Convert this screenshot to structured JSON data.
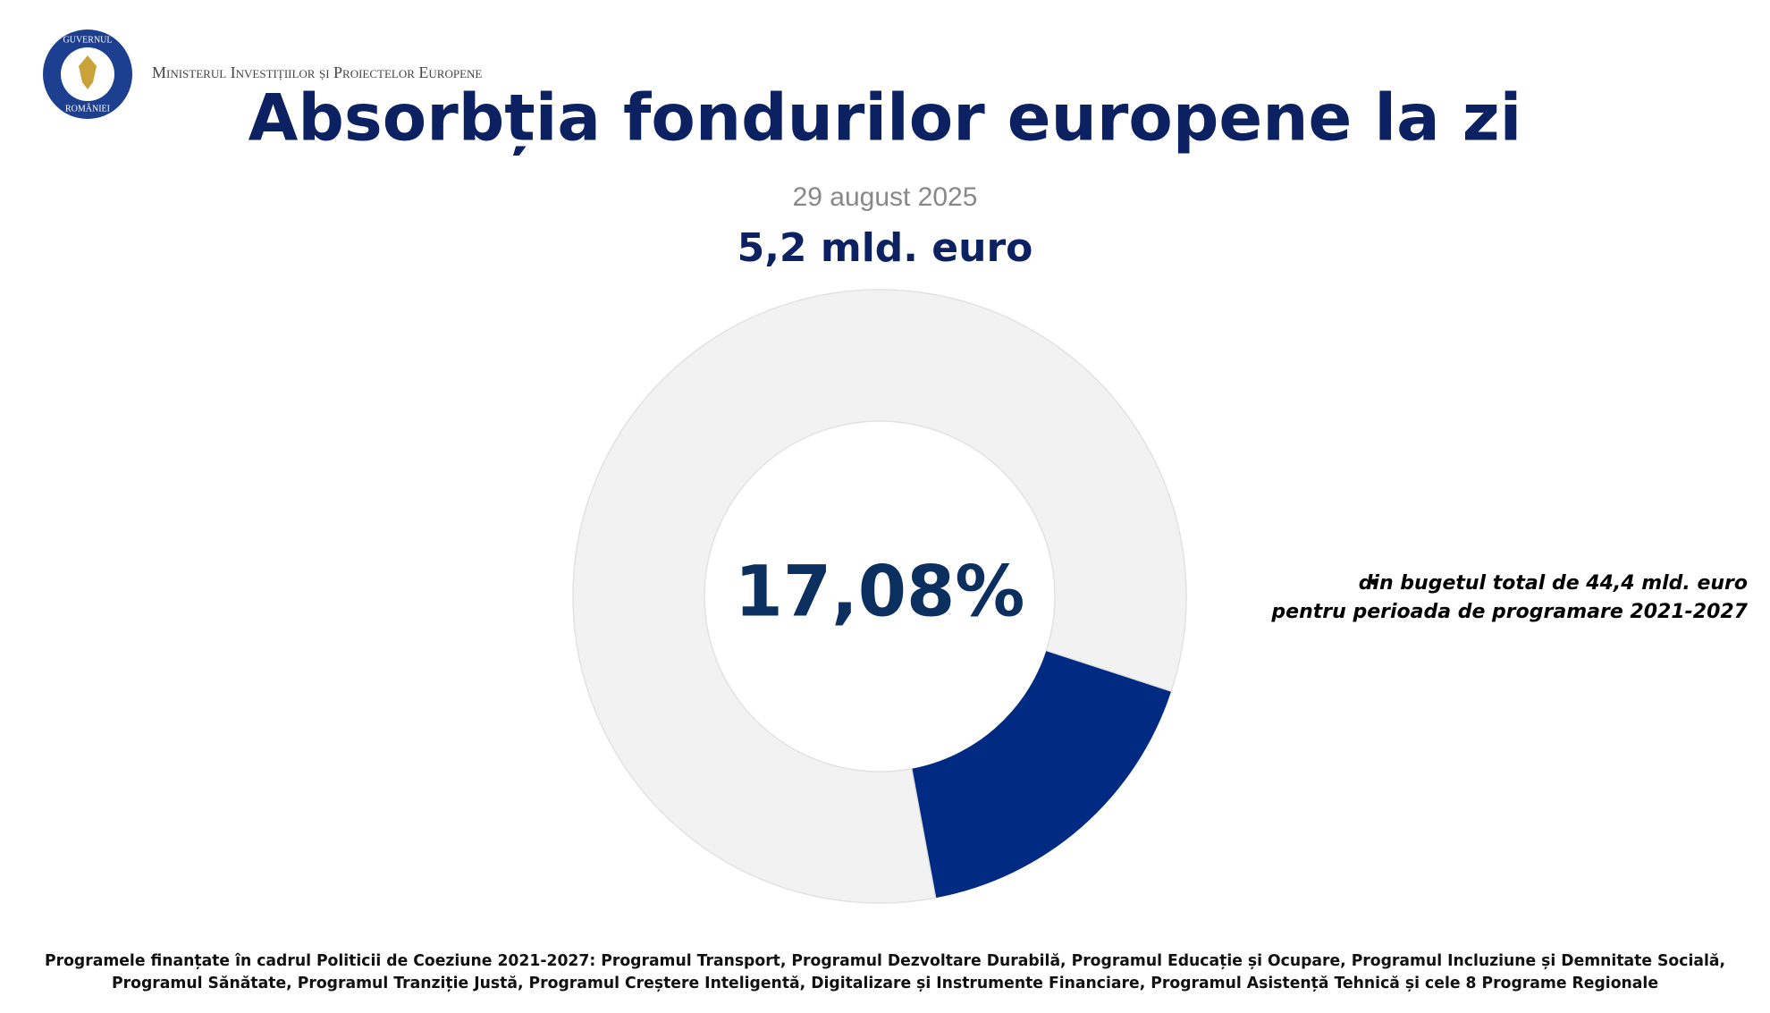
{
  "header": {
    "ministry": "Ministerul Investițiilor și Proiectelor Europene",
    "logo": [
      "GUVERNUL",
      "ROMÂNIEI"
    ]
  },
  "chart_data": {
    "type": "donut",
    "title": "Absorbția fondurilor europene la zi",
    "subtitle": "29 august 2025",
    "headline": "5,2 mld. euro",
    "values": [
      17.08,
      82.92
    ],
    "value_labels": [
      "17,08%",
      null
    ],
    "colors": [
      "#012a83",
      "#f2f2f2"
    ],
    "annotations": [
      "din bugetul total de 44,4 mld. euro",
      "pentru perioada de programare 2021-2027"
    ],
    "footnote": [
      "Programele finanțate în cadrul Politicii de Coeziune 2021-2027: Programul Transport, Programul Dezvoltare Durabilă, Programul Educație și Ocupare, Programul Incluziune și Demnitate Socială,",
      "Programul Sănătate, Programul Tranziție Justă, Programul Creștere Inteligentă, Digitalizare și Instrumente Financiare, Programul Asistență Tehnică și cele 8 Programe Regionale"
    ]
  }
}
